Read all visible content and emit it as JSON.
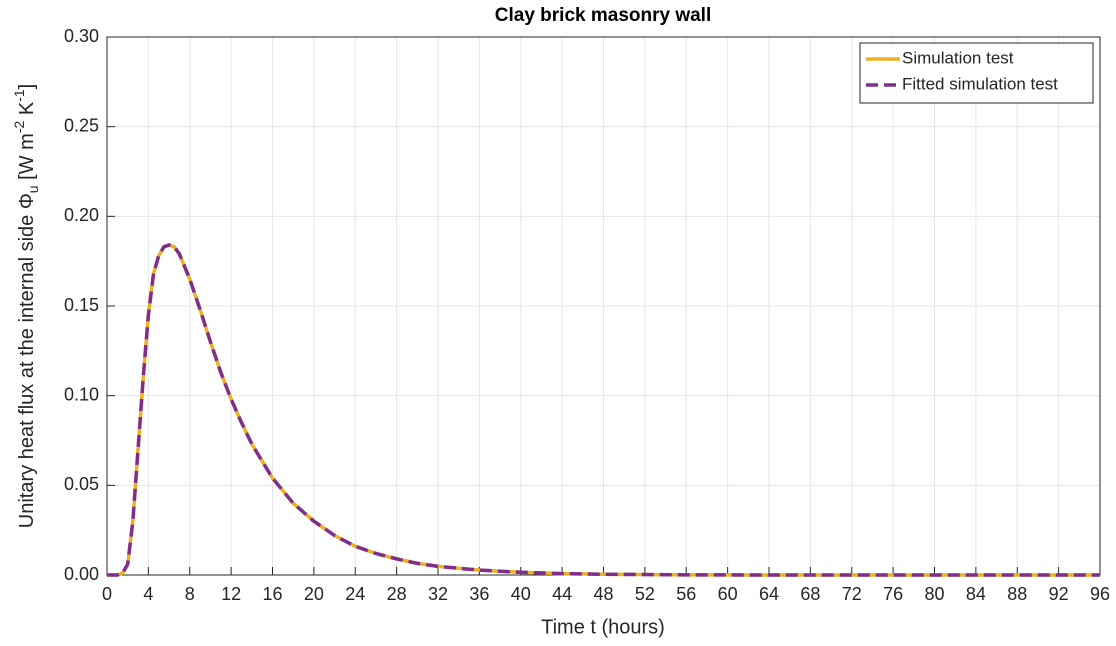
{
  "chart_data": {
    "type": "line",
    "title": "Clay brick masonry wall",
    "xlabel": "Time t (hours)",
    "ylabel": [
      "Unitary heat flux at the internal side Φ",
      "u",
      " [W m",
      "-2",
      " K",
      "-1",
      "]"
    ],
    "x": [
      0,
      1,
      1.5,
      2,
      2.5,
      3,
      3.5,
      4,
      4.5,
      5,
      5.5,
      6,
      6.5,
      7,
      8,
      9,
      10,
      11,
      12,
      13,
      14,
      16,
      18,
      20,
      22,
      24,
      26,
      28,
      30,
      32,
      36,
      40,
      44,
      48,
      56,
      64,
      80,
      96
    ],
    "series": [
      {
        "name": "Simulation test",
        "color": "#EDB120",
        "dashed": false,
        "values": [
          0,
          0,
          0.001,
          0.006,
          0.03,
          0.07,
          0.11,
          0.145,
          0.168,
          0.178,
          0.183,
          0.184,
          0.183,
          0.179,
          0.165,
          0.148,
          0.13,
          0.113,
          0.098,
          0.085,
          0.073,
          0.054,
          0.04,
          0.03,
          0.022,
          0.016,
          0.012,
          0.009,
          0.0065,
          0.0048,
          0.0027,
          0.0015,
          0.0008,
          0.0004,
          0.0001,
          0,
          0,
          0
        ]
      },
      {
        "name": "Fitted simulation test",
        "color": "#7E2F8E",
        "dashed": true,
        "values": [
          0,
          0,
          0.001,
          0.006,
          0.03,
          0.07,
          0.11,
          0.145,
          0.168,
          0.178,
          0.183,
          0.184,
          0.183,
          0.179,
          0.165,
          0.148,
          0.13,
          0.113,
          0.098,
          0.085,
          0.073,
          0.054,
          0.04,
          0.03,
          0.022,
          0.016,
          0.012,
          0.009,
          0.0065,
          0.0048,
          0.0027,
          0.0015,
          0.0008,
          0.0004,
          0.0001,
          0,
          0,
          0
        ]
      }
    ],
    "xlim": [
      0,
      96
    ],
    "xticks": [
      0,
      4,
      8,
      12,
      16,
      20,
      24,
      28,
      32,
      36,
      40,
      44,
      48,
      52,
      56,
      60,
      64,
      68,
      72,
      76,
      80,
      84,
      88,
      92,
      96
    ],
    "ylim": [
      0,
      0.3
    ],
    "yticks": [
      {
        "value": 0,
        "label": "0.00"
      },
      {
        "value": 0.05,
        "label": "0.05"
      },
      {
        "value": 0.1,
        "label": "0.10"
      },
      {
        "value": 0.15,
        "label": "0.15"
      },
      {
        "value": 0.2,
        "label": "0.20"
      },
      {
        "value": 0.25,
        "label": "0.25"
      },
      {
        "value": 0.3,
        "label": "0.30"
      }
    ],
    "grid": true,
    "legend": "upper right"
  }
}
